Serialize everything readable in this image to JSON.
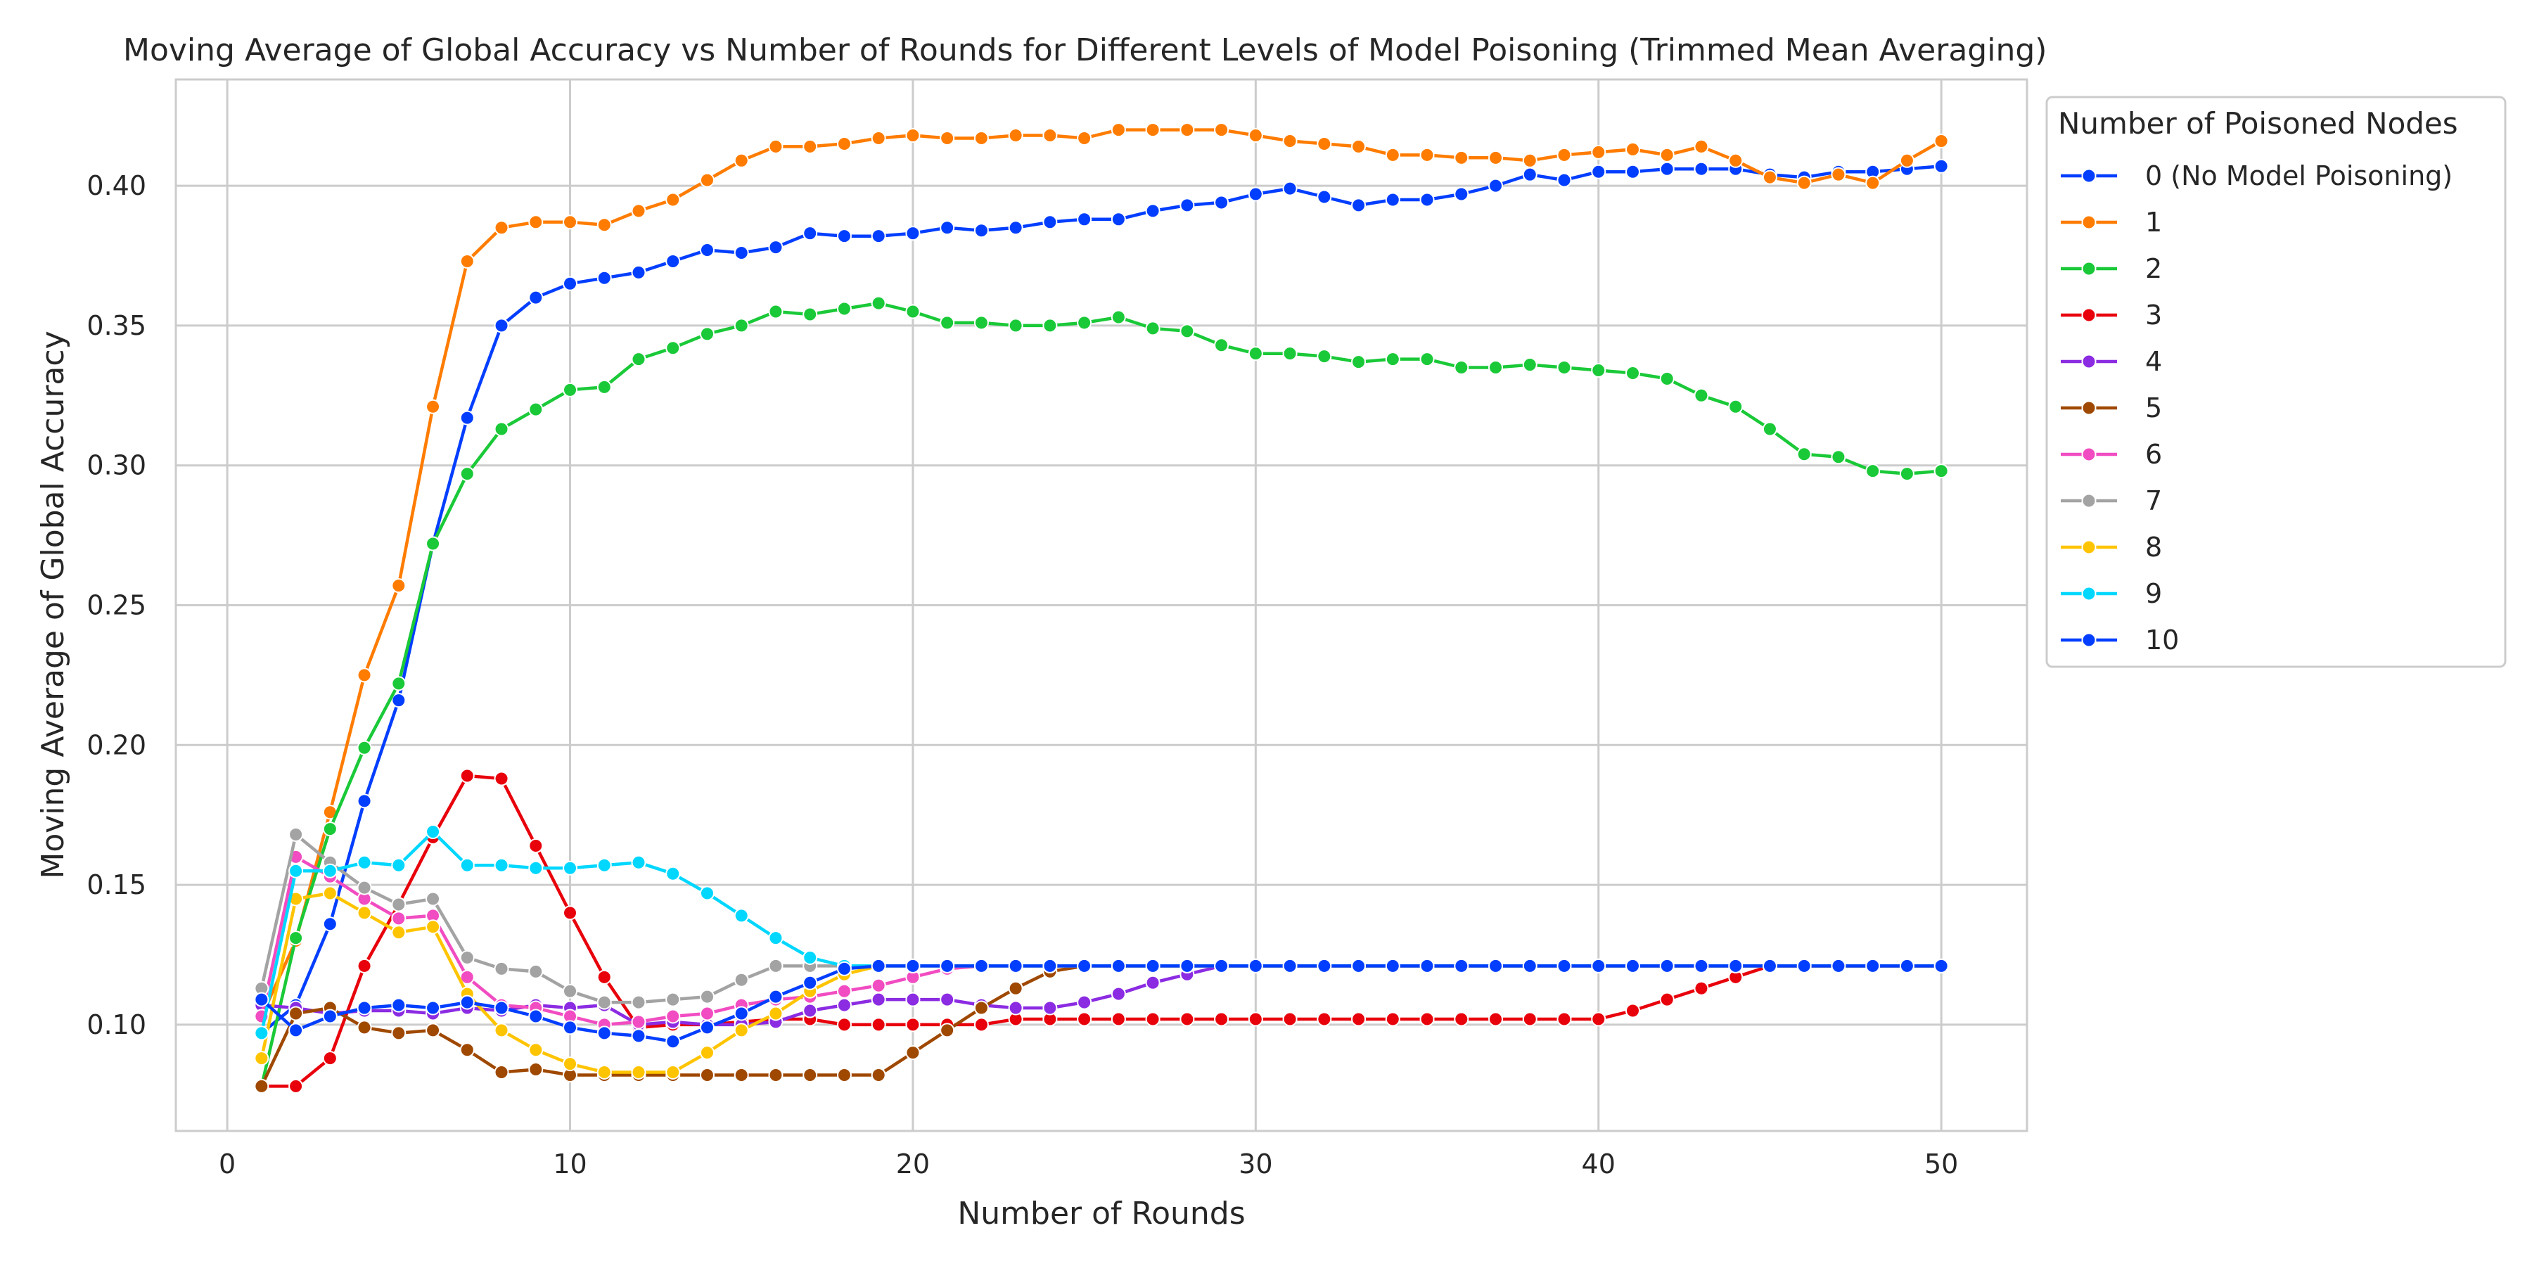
{
  "chart_data": {
    "type": "line",
    "title": "Moving Average of Global Accuracy vs Number of Rounds for Different Levels of Model Poisoning (Trimmed Mean Averaging)",
    "xlabel": "Number of Rounds",
    "ylabel": "Moving Average of Global Accuracy",
    "xlim": [
      -1.5,
      52.5
    ],
    "ylim": [
      0.062,
      0.438
    ],
    "xticks": [
      0,
      10,
      20,
      30,
      40,
      50
    ],
    "yticks": [
      0.1,
      0.15,
      0.2,
      0.25,
      0.3,
      0.35,
      0.4
    ],
    "grid": true,
    "legend": {
      "title": "Number of Poisoned Nodes",
      "placement": "outside-right"
    },
    "x": [
      1,
      2,
      3,
      4,
      5,
      6,
      7,
      8,
      9,
      10,
      11,
      12,
      13,
      14,
      15,
      16,
      17,
      18,
      19,
      20,
      21,
      22,
      23,
      24,
      25,
      26,
      27,
      28,
      29,
      30,
      31,
      32,
      33,
      34,
      35,
      36,
      37,
      38,
      39,
      40,
      41,
      42,
      43,
      44,
      45,
      46,
      47,
      48,
      49,
      50
    ],
    "series": [
      {
        "name": "0 (No Model Poisoning)",
        "color": "#023eff",
        "values": [
          0.097,
          0.107,
          0.136,
          0.18,
          0.216,
          0.272,
          0.317,
          0.35,
          0.36,
          0.365,
          0.367,
          0.369,
          0.373,
          0.377,
          0.376,
          0.378,
          0.383,
          0.382,
          0.382,
          0.383,
          0.385,
          0.384,
          0.385,
          0.387,
          0.388,
          0.388,
          0.391,
          0.393,
          0.394,
          0.397,
          0.399,
          0.396,
          0.393,
          0.395,
          0.395,
          0.397,
          0.4,
          0.404,
          0.402,
          0.405,
          0.405,
          0.406,
          0.406,
          0.406,
          0.404,
          0.403,
          0.405,
          0.405,
          0.406,
          0.407
        ]
      },
      {
        "name": "1",
        "color": "#ff7c00",
        "values": [
          0.103,
          0.13,
          0.176,
          0.225,
          0.257,
          0.321,
          0.373,
          0.385,
          0.387,
          0.387,
          0.386,
          0.391,
          0.395,
          0.402,
          0.409,
          0.414,
          0.414,
          0.415,
          0.417,
          0.418,
          0.417,
          0.417,
          0.418,
          0.418,
          0.417,
          0.42,
          0.42,
          0.42,
          0.42,
          0.418,
          0.416,
          0.415,
          0.414,
          0.411,
          0.411,
          0.41,
          0.41,
          0.409,
          0.411,
          0.412,
          0.413,
          0.411,
          0.414,
          0.409,
          0.403,
          0.401,
          0.404,
          0.401,
          0.409,
          0.416
        ]
      },
      {
        "name": "2",
        "color": "#1ac938",
        "values": [
          0.078,
          0.131,
          0.17,
          0.199,
          0.222,
          0.272,
          0.297,
          0.313,
          0.32,
          0.327,
          0.328,
          0.338,
          0.342,
          0.347,
          0.35,
          0.355,
          0.354,
          0.356,
          0.358,
          0.355,
          0.351,
          0.351,
          0.35,
          0.35,
          0.351,
          0.353,
          0.349,
          0.348,
          0.343,
          0.34,
          0.34,
          0.339,
          0.337,
          0.338,
          0.338,
          0.335,
          0.335,
          0.336,
          0.335,
          0.334,
          0.333,
          0.331,
          0.325,
          0.321,
          0.313,
          0.304,
          0.303,
          0.298,
          0.297,
          0.298
        ]
      },
      {
        "name": "3",
        "color": "#e8000b",
        "values": [
          0.078,
          0.078,
          0.088,
          0.121,
          0.143,
          0.167,
          0.189,
          0.188,
          0.164,
          0.14,
          0.117,
          0.099,
          0.1,
          0.1,
          0.101,
          0.102,
          0.102,
          0.1,
          0.1,
          0.1,
          0.1,
          0.1,
          0.102,
          0.102,
          0.102,
          0.102,
          0.102,
          0.102,
          0.102,
          0.102,
          0.102,
          0.102,
          0.102,
          0.102,
          0.102,
          0.102,
          0.102,
          0.102,
          0.102,
          0.102,
          0.105,
          0.109,
          0.113,
          0.117,
          0.121,
          0.121,
          0.121,
          0.121,
          0.121,
          0.121
        ]
      },
      {
        "name": "4",
        "color": "#8b2be2",
        "values": [
          0.107,
          0.106,
          0.104,
          0.105,
          0.105,
          0.104,
          0.106,
          0.105,
          0.107,
          0.106,
          0.107,
          0.1,
          0.101,
          0.1,
          0.1,
          0.101,
          0.105,
          0.107,
          0.109,
          0.109,
          0.109,
          0.107,
          0.106,
          0.106,
          0.108,
          0.111,
          0.115,
          0.118,
          0.121,
          0.121,
          0.121,
          0.121,
          0.121,
          0.121,
          0.121,
          0.121,
          0.121,
          0.121,
          0.121,
          0.121,
          0.121,
          0.121,
          0.121,
          0.121,
          0.121,
          0.121,
          0.121,
          0.121,
          0.121,
          0.121
        ]
      },
      {
        "name": "5",
        "color": "#9f4800",
        "values": [
          0.078,
          0.104,
          0.106,
          0.099,
          0.097,
          0.098,
          0.091,
          0.083,
          0.084,
          0.082,
          0.082,
          0.082,
          0.082,
          0.082,
          0.082,
          0.082,
          0.082,
          0.082,
          0.082,
          0.09,
          0.098,
          0.106,
          0.113,
          0.119,
          0.121,
          0.121,
          0.121,
          0.121,
          0.121,
          0.121,
          0.121,
          0.121,
          0.121,
          0.121,
          0.121,
          0.121,
          0.121,
          0.121,
          0.121,
          0.121,
          0.121,
          0.121,
          0.121,
          0.121,
          0.121,
          0.121,
          0.121,
          0.121,
          0.121,
          0.121
        ]
      },
      {
        "name": "6",
        "color": "#f14cc1",
        "values": [
          0.103,
          0.16,
          0.153,
          0.145,
          0.138,
          0.139,
          0.117,
          0.107,
          0.106,
          0.103,
          0.1,
          0.101,
          0.103,
          0.104,
          0.107,
          0.109,
          0.11,
          0.112,
          0.114,
          0.117,
          0.12,
          0.121,
          0.121,
          0.121,
          0.121,
          0.121,
          0.121,
          0.121,
          0.121,
          0.121,
          0.121,
          0.121,
          0.121,
          0.121,
          0.121,
          0.121,
          0.121,
          0.121,
          0.121,
          0.121,
          0.121,
          0.121,
          0.121,
          0.121,
          0.121,
          0.121,
          0.121,
          0.121,
          0.121,
          0.121
        ]
      },
      {
        "name": "7",
        "color": "#a3a3a3",
        "values": [
          0.113,
          0.168,
          0.158,
          0.149,
          0.143,
          0.145,
          0.124,
          0.12,
          0.119,
          0.112,
          0.108,
          0.108,
          0.109,
          0.11,
          0.116,
          0.121,
          0.121,
          0.121,
          0.121,
          0.121,
          0.121,
          0.121,
          0.121,
          0.121,
          0.121,
          0.121,
          0.121,
          0.121,
          0.121,
          0.121,
          0.121,
          0.121,
          0.121,
          0.121,
          0.121,
          0.121,
          0.121,
          0.121,
          0.121,
          0.121,
          0.121,
          0.121,
          0.121,
          0.121,
          0.121,
          0.121,
          0.121,
          0.121,
          0.121,
          0.121
        ]
      },
      {
        "name": "8",
        "color": "#ffc400",
        "values": [
          0.088,
          0.145,
          0.147,
          0.14,
          0.133,
          0.135,
          0.111,
          0.098,
          0.091,
          0.086,
          0.083,
          0.083,
          0.083,
          0.09,
          0.098,
          0.104,
          0.112,
          0.118,
          0.121,
          0.121,
          0.121,
          0.121,
          0.121,
          0.121,
          0.121,
          0.121,
          0.121,
          0.121,
          0.121,
          0.121,
          0.121,
          0.121,
          0.121,
          0.121,
          0.121,
          0.121,
          0.121,
          0.121,
          0.121,
          0.121,
          0.121,
          0.121,
          0.121,
          0.121,
          0.121,
          0.121,
          0.121,
          0.121,
          0.121,
          0.121
        ]
      },
      {
        "name": "9",
        "color": "#00d7ff",
        "values": [
          0.097,
          0.155,
          0.155,
          0.158,
          0.157,
          0.169,
          0.157,
          0.157,
          0.156,
          0.156,
          0.157,
          0.158,
          0.154,
          0.147,
          0.139,
          0.131,
          0.124,
          0.121,
          0.121,
          0.121,
          0.121,
          0.121,
          0.121,
          0.121,
          0.121,
          0.121,
          0.121,
          0.121,
          0.121,
          0.121,
          0.121,
          0.121,
          0.121,
          0.121,
          0.121,
          0.121,
          0.121,
          0.121,
          0.121,
          0.121,
          0.121,
          0.121,
          0.121,
          0.121,
          0.121,
          0.121,
          0.121,
          0.121,
          0.121,
          0.121
        ]
      },
      {
        "name": "10",
        "color": "#023eff",
        "values": [
          0.109,
          0.098,
          0.103,
          0.106,
          0.107,
          0.106,
          0.108,
          0.106,
          0.103,
          0.099,
          0.097,
          0.096,
          0.094,
          0.099,
          0.104,
          0.11,
          0.115,
          0.12,
          0.121,
          0.121,
          0.121,
          0.121,
          0.121,
          0.121,
          0.121,
          0.121,
          0.121,
          0.121,
          0.121,
          0.121,
          0.121,
          0.121,
          0.121,
          0.121,
          0.121,
          0.121,
          0.121,
          0.121,
          0.121,
          0.121,
          0.121,
          0.121,
          0.121,
          0.121,
          0.121,
          0.121,
          0.121,
          0.121,
          0.121,
          0.121
        ]
      }
    ]
  }
}
